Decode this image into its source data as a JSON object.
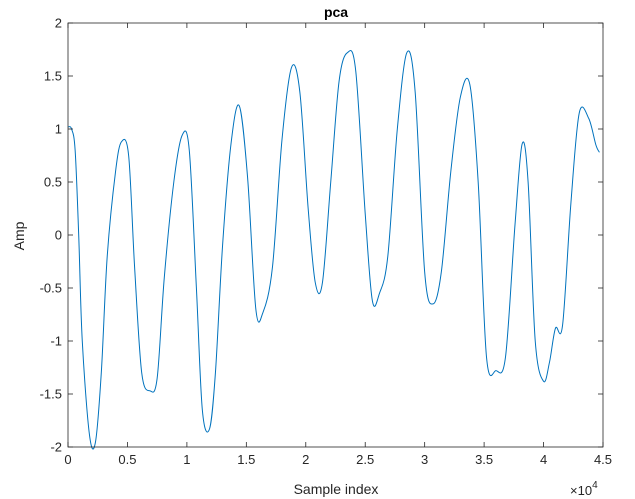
{
  "chart_data": {
    "type": "line",
    "title": "pca",
    "xlabel": "Sample index",
    "ylabel": "Amp",
    "xlim": [
      0,
      45000
    ],
    "ylim": [
      -2,
      2
    ],
    "x_exponent_label": "×10",
    "x_exponent_power": "4",
    "x_ticks": [
      0,
      5000,
      10000,
      15000,
      20000,
      25000,
      30000,
      35000,
      40000,
      45000
    ],
    "x_tick_labels": [
      "0",
      "0.5",
      "1",
      "1.5",
      "2",
      "2.5",
      "3",
      "3.5",
      "4",
      "4.5"
    ],
    "y_ticks": [
      -2,
      -1.5,
      -1,
      -0.5,
      0,
      0.5,
      1,
      1.5,
      2
    ],
    "y_tick_labels": [
      "-2",
      "-1.5",
      "-1",
      "-0.5",
      "0",
      "0.5",
      "1",
      "1.5",
      "2"
    ],
    "grid": false,
    "line_color": "#0072BD",
    "series": [
      {
        "x": [
          0,
          300,
          600,
          900,
          1200,
          1800,
          2300,
          2800,
          3300,
          4000,
          4500,
          5100,
          5600,
          6200,
          6900,
          7500,
          8100,
          8900,
          9600,
          10200,
          10800,
          11300,
          11900,
          12400,
          13000,
          13700,
          14400,
          15100,
          15800,
          16400,
          17200,
          18000,
          18800,
          19500,
          20200,
          20800,
          21400,
          22100,
          22800,
          23500,
          24200,
          25000,
          25600,
          26200,
          26900,
          27700,
          28500,
          29200,
          30000,
          30700,
          31400,
          32200,
          33000,
          33800,
          34500,
          35200,
          36000,
          36800,
          37600,
          38200,
          38700,
          39300,
          40000,
          40500,
          41000,
          41600,
          42300,
          43000,
          43800,
          44400,
          44700
        ],
        "y": [
          1.02,
          1.0,
          0.8,
          0.0,
          -1.0,
          -1.88,
          -1.96,
          -1.3,
          -0.2,
          0.6,
          0.88,
          0.75,
          -0.3,
          -1.3,
          -1.47,
          -1.35,
          -0.4,
          0.5,
          0.94,
          0.8,
          -0.5,
          -1.65,
          -1.83,
          -1.3,
          -0.1,
          0.85,
          1.22,
          0.55,
          -0.7,
          -0.73,
          -0.3,
          0.9,
          1.58,
          1.35,
          0.25,
          -0.45,
          -0.45,
          0.5,
          1.45,
          1.72,
          1.55,
          0.2,
          -0.62,
          -0.55,
          -0.2,
          1.0,
          1.72,
          1.35,
          -0.35,
          -0.65,
          -0.35,
          0.6,
          1.3,
          1.42,
          0.5,
          -1.15,
          -1.28,
          -1.15,
          0.1,
          0.86,
          0.5,
          -1.0,
          -1.38,
          -1.2,
          -0.88,
          -0.85,
          0.3,
          1.15,
          1.1,
          0.85,
          0.78
        ]
      }
    ]
  }
}
